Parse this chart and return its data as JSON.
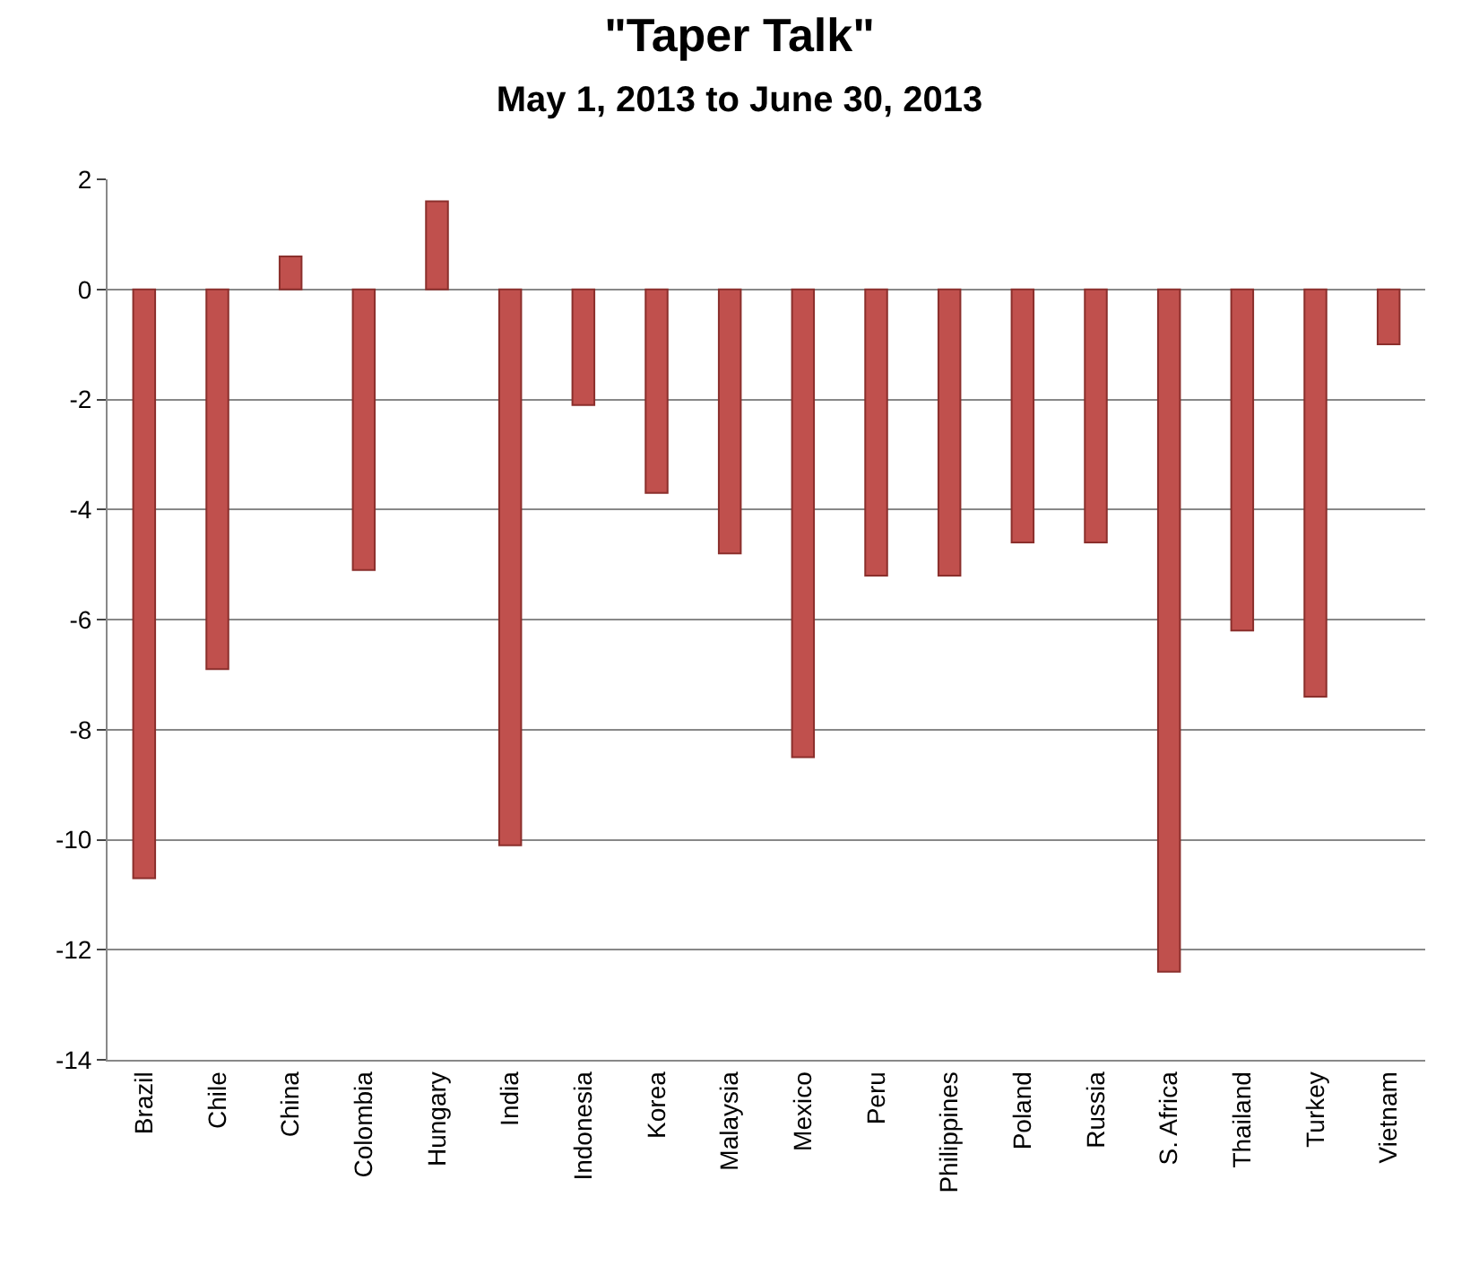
{
  "chart_data": {
    "type": "bar",
    "title": "\"Taper Talk\"",
    "subtitle": "May 1, 2013 to June 30, 2013",
    "categories": [
      "Brazil",
      "Chile",
      "China",
      "Colombia",
      "Hungary",
      "India",
      "Indonesia",
      "Korea",
      "Malaysia",
      "Mexico",
      "Peru",
      "Philippines",
      "Poland",
      "Russia",
      "S. Africa",
      "Thailand",
      "Turkey",
      "Vietnam"
    ],
    "values": [
      -10.7,
      -6.9,
      0.6,
      -5.1,
      1.6,
      -10.1,
      -2.1,
      -3.7,
      -4.8,
      -8.5,
      -5.2,
      -5.2,
      -4.6,
      -4.6,
      -12.4,
      -6.2,
      -7.4,
      -1.0
    ],
    "color": "#c0504d",
    "ylim": [
      -14,
      2
    ],
    "yticks": [
      -14,
      -12,
      -10,
      -8,
      -6,
      -4,
      -2,
      0,
      2
    ],
    "grid": "y"
  }
}
